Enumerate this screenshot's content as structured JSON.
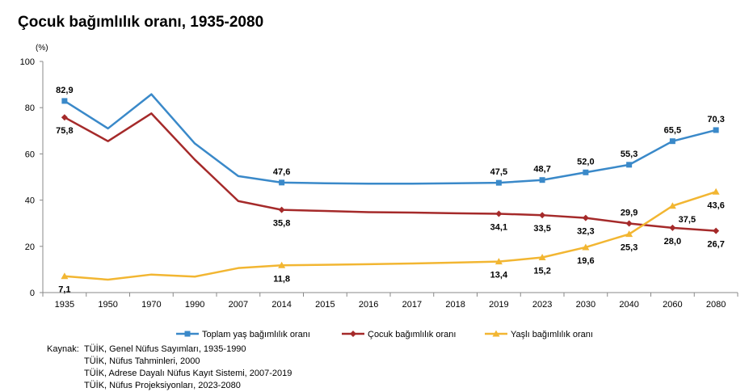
{
  "title": "Çocuk bağımlılık oranı, 1935-2080",
  "chart_data": {
    "type": "line",
    "title": "Çocuk bağımlılık oranı, 1935-2080",
    "ylabel": "(%)",
    "xlabel": "",
    "ylim": [
      0,
      100
    ],
    "yticks": [
      0,
      20,
      40,
      60,
      80,
      100
    ],
    "categories": [
      "1935",
      "1950",
      "1970",
      "1990",
      "2007",
      "2014",
      "2015",
      "2016",
      "2017",
      "2018",
      "2019",
      "2023",
      "2030",
      "2040",
      "2060",
      "2080"
    ],
    "series": [
      {
        "name": "Toplam  yaş bağımlılık oranı",
        "color": "#3A89C9",
        "marker": "square",
        "values": [
          82.9,
          71.0,
          85.8,
          64.5,
          50.4,
          47.6,
          47.3,
          47.1,
          47.1,
          47.3,
          47.5,
          48.7,
          52.0,
          55.3,
          65.5,
          70.3
        ],
        "labels": [
          {
            "index": 0,
            "text": "82,9",
            "pos": "above"
          },
          {
            "index": 5,
            "text": "47,6",
            "pos": "above"
          },
          {
            "index": 10,
            "text": "47,5",
            "pos": "above"
          },
          {
            "index": 11,
            "text": "48,7",
            "pos": "above"
          },
          {
            "index": 12,
            "text": "52,0",
            "pos": "above"
          },
          {
            "index": 13,
            "text": "55,3",
            "pos": "above"
          },
          {
            "index": 14,
            "text": "65,5",
            "pos": "above"
          },
          {
            "index": 15,
            "text": "70,3",
            "pos": "above"
          }
        ]
      },
      {
        "name": "Çocuk bağımlılık oranı",
        "color": "#A52A2A",
        "marker": "diamond",
        "values": [
          75.8,
          65.5,
          77.5,
          57.5,
          39.6,
          35.8,
          35.3,
          34.8,
          34.6,
          34.3,
          34.1,
          33.5,
          32.3,
          29.9,
          28.0,
          26.7
        ],
        "labels": [
          {
            "index": 0,
            "text": "75,8",
            "pos": "below"
          },
          {
            "index": 5,
            "text": "35,8",
            "pos": "below"
          },
          {
            "index": 10,
            "text": "34,1",
            "pos": "below"
          },
          {
            "index": 11,
            "text": "33,5",
            "pos": "below"
          },
          {
            "index": 12,
            "text": "32,3",
            "pos": "below"
          },
          {
            "index": 13,
            "text": "29,9",
            "pos": "above"
          },
          {
            "index": 14,
            "text": "28,0",
            "pos": "below"
          },
          {
            "index": 15,
            "text": "26,7",
            "pos": "below"
          }
        ]
      },
      {
        "name": "Yaşlı bağımlılık oranı",
        "color": "#F2B632",
        "marker": "triangle",
        "values": [
          7.1,
          5.6,
          7.8,
          6.9,
          10.6,
          11.8,
          12.0,
          12.3,
          12.6,
          13.0,
          13.4,
          15.2,
          19.6,
          25.3,
          37.5,
          43.6
        ],
        "labels": [
          {
            "index": 0,
            "text": "7,1",
            "pos": "below"
          },
          {
            "index": 5,
            "text": "11,8",
            "pos": "below"
          },
          {
            "index": 10,
            "text": "13,4",
            "pos": "below"
          },
          {
            "index": 11,
            "text": "15,2",
            "pos": "below"
          },
          {
            "index": 12,
            "text": "19,6",
            "pos": "below"
          },
          {
            "index": 13,
            "text": "25,3",
            "pos": "below"
          },
          {
            "index": 14,
            "text": "37,5",
            "pos": "below-right"
          },
          {
            "index": 15,
            "text": "43,6",
            "pos": "below"
          }
        ]
      }
    ],
    "legend": "bottom"
  },
  "source": {
    "heading": "Kaynak:",
    "lines": [
      "TÜİK, Genel Nüfus Sayımları, 1935-1990",
      "TÜİK, Nüfus Tahminleri, 2000",
      "TÜİK, Adrese Dayalı Nüfus Kayıt Sistemi,  2007-2019",
      "TÜİK, Nüfus Projeksiyonları, 2023-2080"
    ]
  }
}
